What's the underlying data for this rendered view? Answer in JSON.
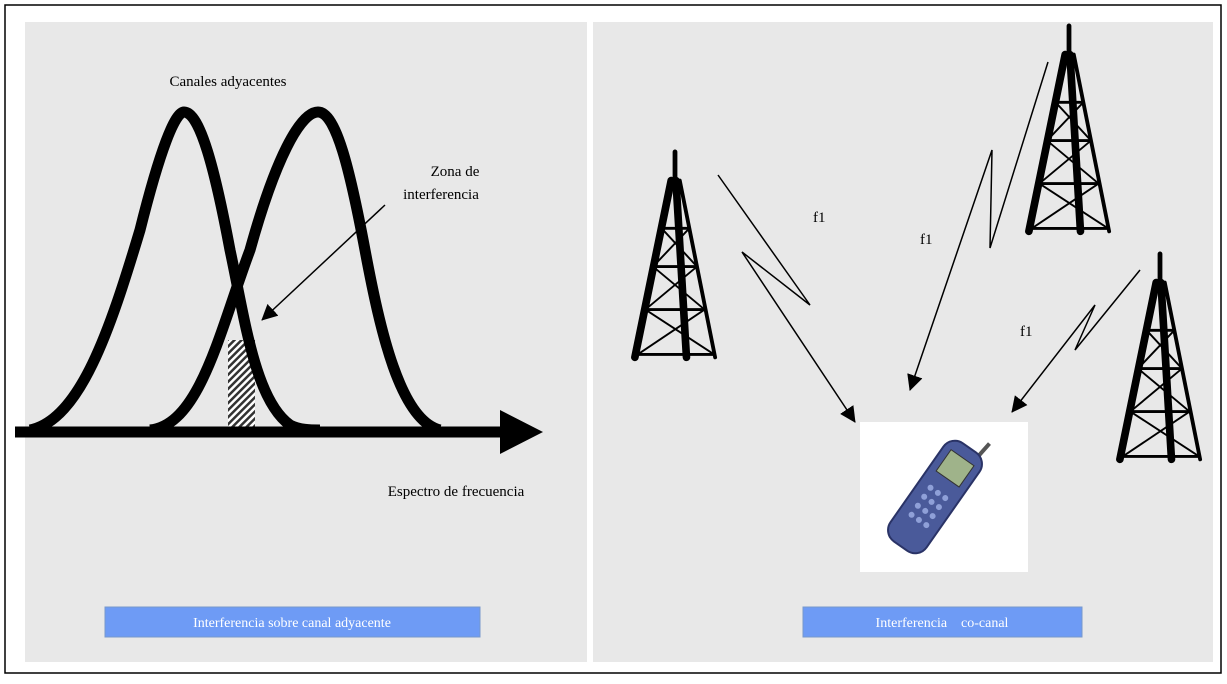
{
  "left_panel": {
    "curves_label": "Canales adyacentes",
    "zone_label_line1": "Zona de",
    "zone_label_line2": "interferencia",
    "axis_label": "Espectro de frecuencia",
    "caption": "Interferencia sobre canal adyacente"
  },
  "right_panel": {
    "frequency_labels": [
      "f1",
      "f1",
      "f1"
    ],
    "caption": "Interferencia    co-canal"
  }
}
